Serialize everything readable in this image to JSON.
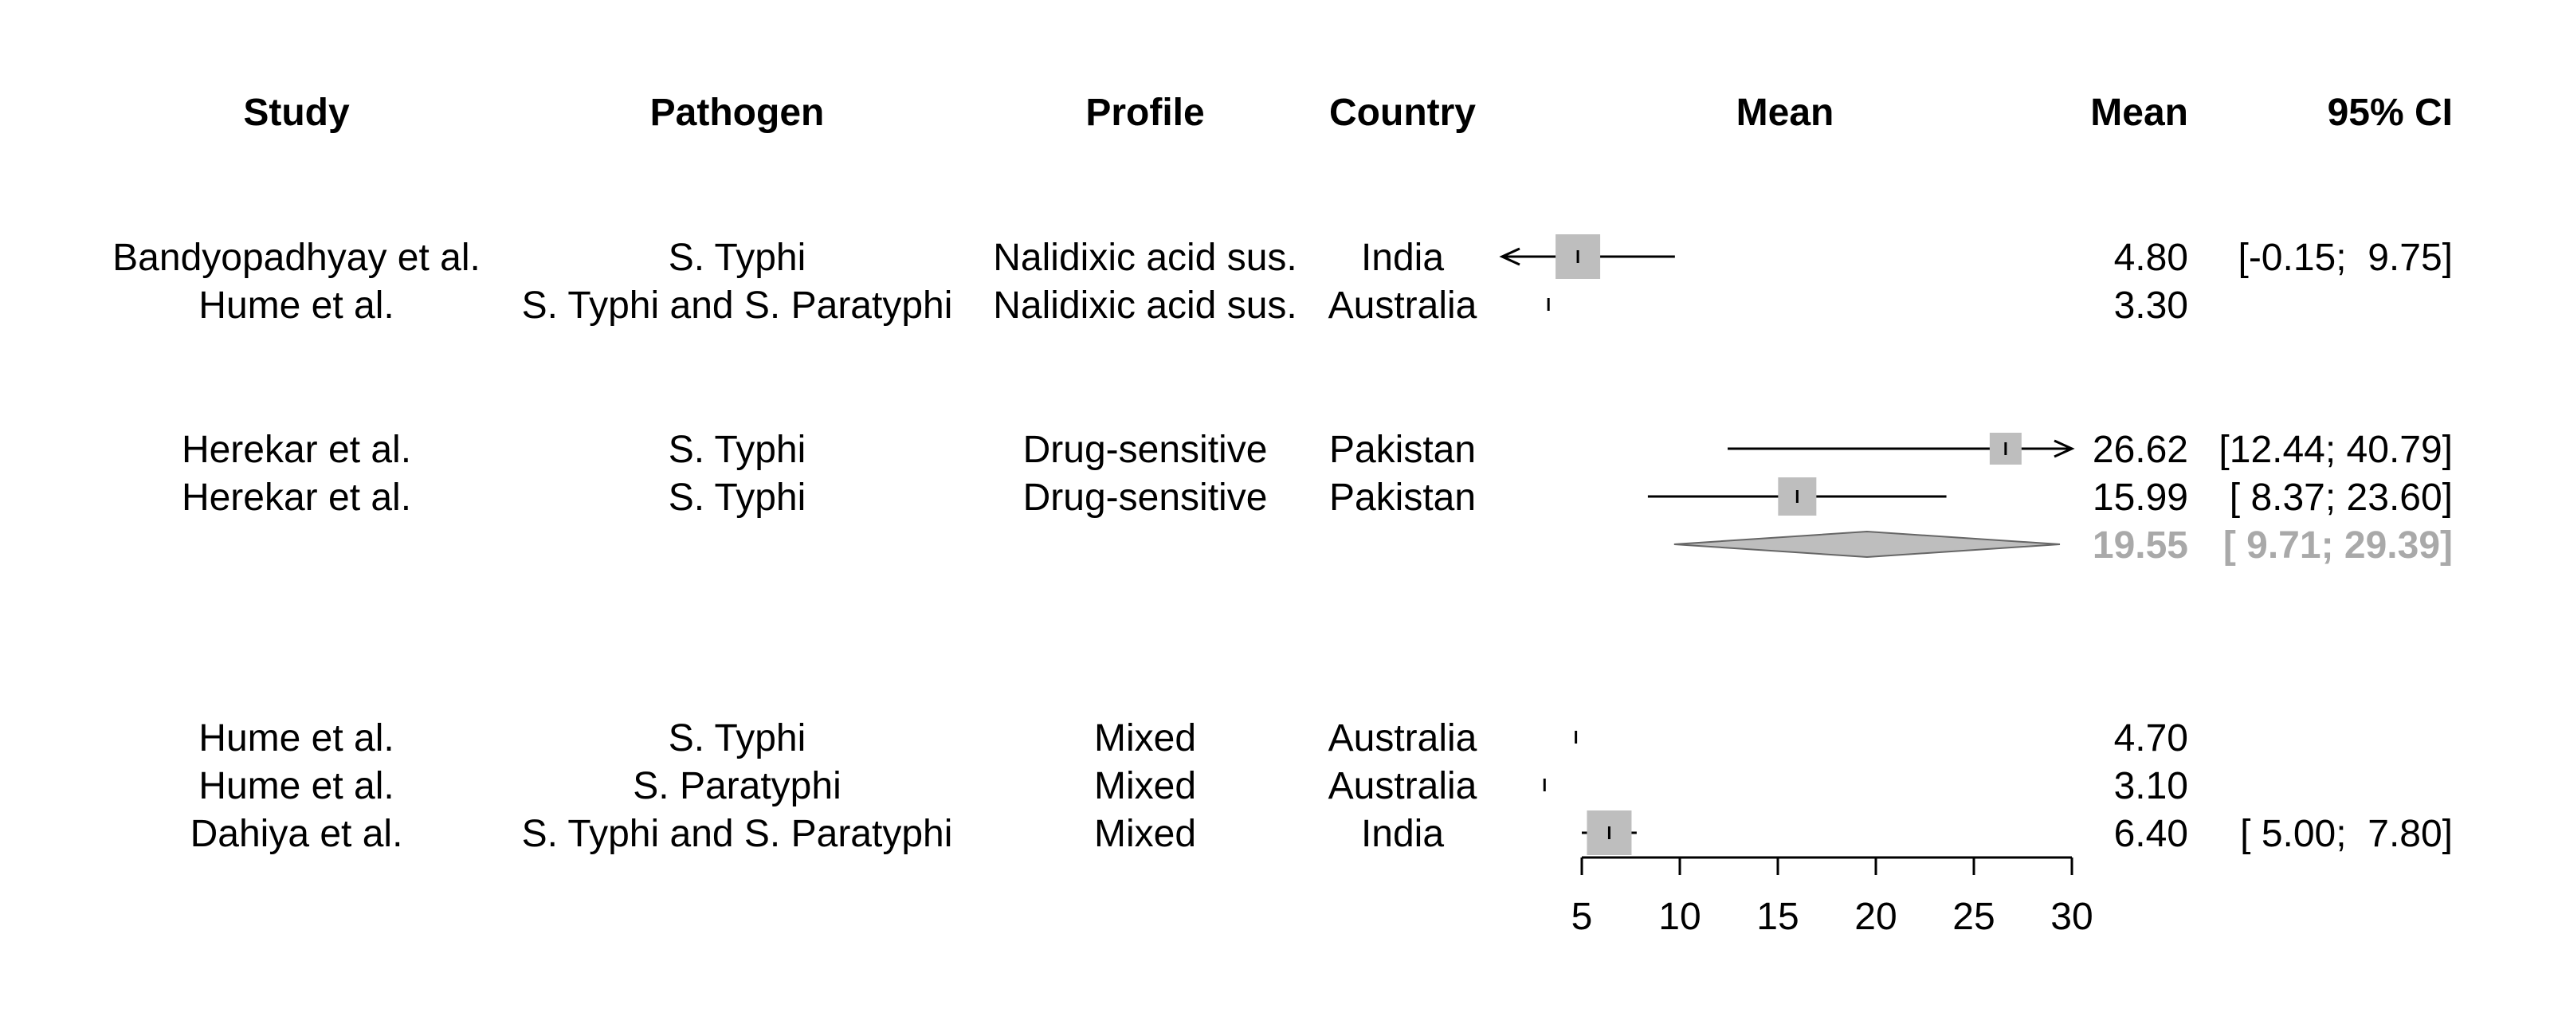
{
  "chart_data": {
    "type": "forest",
    "headers": {
      "study": "Study",
      "pathogen": "Pathogen",
      "profile": "Profile",
      "country": "Country",
      "plot": "Mean",
      "mean": "Mean",
      "ci": "95% CI"
    },
    "rows": [
      {
        "study": "Bandyopadhyay et al.",
        "pathogen": "S. Typhi",
        "profile": "Nalidixic acid sus.",
        "country": "India",
        "mean": 4.8,
        "lower": -0.15,
        "upper": 9.75,
        "mean_label": "4.80",
        "ci_label": "[-0.15;  9.75]",
        "weight": 1.0
      },
      {
        "study": "Hume et al.",
        "pathogen": "S. Typhi and S. Paratyphi",
        "profile": "Nalidixic acid sus.",
        "country": "Australia",
        "mean": 3.3,
        "lower": null,
        "upper": null,
        "mean_label": "3.30",
        "ci_label": "",
        "weight": 0
      },
      {
        "study": "Herekar et al.",
        "pathogen": "S. Typhi",
        "profile": "Drug-sensitive",
        "country": "Pakistan",
        "mean": 26.62,
        "lower": 12.44,
        "upper": 40.79,
        "mean_label": "26.62",
        "ci_label": "[12.44; 40.79]",
        "weight": 0.6
      },
      {
        "study": "Herekar et al.",
        "pathogen": "S. Typhi",
        "profile": "Drug-sensitive",
        "country": "Pakistan",
        "mean": 15.99,
        "lower": 8.37,
        "upper": 23.6,
        "mean_label": "15.99",
        "ci_label": "[ 8.37; 23.60]",
        "weight": 0.8
      },
      {
        "summary": true,
        "mean": 19.55,
        "lower": 9.71,
        "upper": 29.39,
        "mean_label": "19.55",
        "ci_label": "[ 9.71; 29.39]"
      },
      {
        "study": "Hume et al.",
        "pathogen": "S. Typhi",
        "profile": "Mixed",
        "country": "Australia",
        "mean": 4.7,
        "lower": null,
        "upper": null,
        "mean_label": "4.70",
        "ci_label": "",
        "weight": 0
      },
      {
        "study": "Hume et al.",
        "pathogen": "S. Paratyphi",
        "profile": "Mixed",
        "country": "Australia",
        "mean": 3.1,
        "lower": null,
        "upper": null,
        "mean_label": "3.10",
        "ci_label": "",
        "weight": 0
      },
      {
        "study": "Dahiya et al.",
        "pathogen": "S. Typhi and S. Paratyphi",
        "profile": "Mixed",
        "country": "India",
        "mean": 6.4,
        "lower": 5.0,
        "upper": 7.8,
        "mean_label": "6.40",
        "ci_label": "[ 5.00;  7.80]",
        "weight": 1.0
      }
    ],
    "xlim": [
      5,
      30
    ],
    "xticks": [
      5,
      10,
      15,
      20,
      25,
      30
    ],
    "xtick_labels": [
      "5",
      "10",
      "15",
      "20",
      "25",
      "30"
    ],
    "colors": {
      "box": "#bebebe",
      "line": "#000000",
      "summary_text": "#a9a9a9",
      "diamond": "#bebebe"
    }
  }
}
